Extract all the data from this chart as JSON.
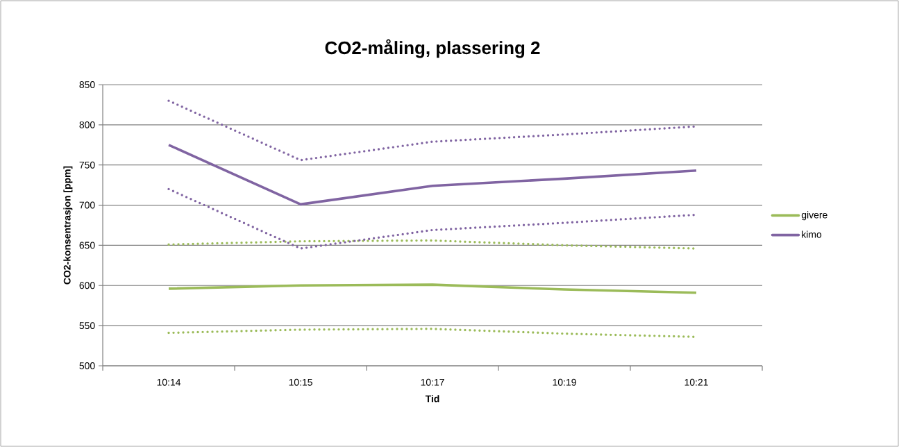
{
  "chart_data": {
    "type": "line",
    "title": "CO2-måling, plassering 2",
    "xlabel": "Tid",
    "ylabel": "CO2-konsentrasjon [ppm]",
    "categories": [
      "10:14",
      "10:15",
      "10:17",
      "10:19",
      "10:21"
    ],
    "series": [
      {
        "name": "givere",
        "color": "#9bbb59",
        "line_style": "solid",
        "values": [
          596,
          600,
          601,
          595,
          591
        ]
      },
      {
        "name": "kimo",
        "color": "#8064a2",
        "line_style": "solid",
        "values": [
          775,
          701,
          724,
          733,
          743
        ]
      },
      {
        "color": "#9bbb59",
        "line_style": "dotted",
        "values": [
          651,
          655,
          656,
          650,
          646
        ]
      },
      {
        "color": "#9bbb59",
        "line_style": "dotted",
        "values": [
          541,
          545,
          546,
          540,
          536
        ]
      },
      {
        "color": "#8064a2",
        "line_style": "dotted",
        "values": [
          830,
          756,
          779,
          788,
          798
        ]
      },
      {
        "color": "#8064a2",
        "line_style": "dotted",
        "values": [
          720,
          646,
          669,
          678,
          688
        ]
      }
    ],
    "ylim": [
      500,
      850
    ],
    "yticks": [
      500,
      550,
      600,
      650,
      700,
      750,
      800,
      850
    ],
    "grid": "y",
    "legend": "right",
    "marker": "none"
  }
}
